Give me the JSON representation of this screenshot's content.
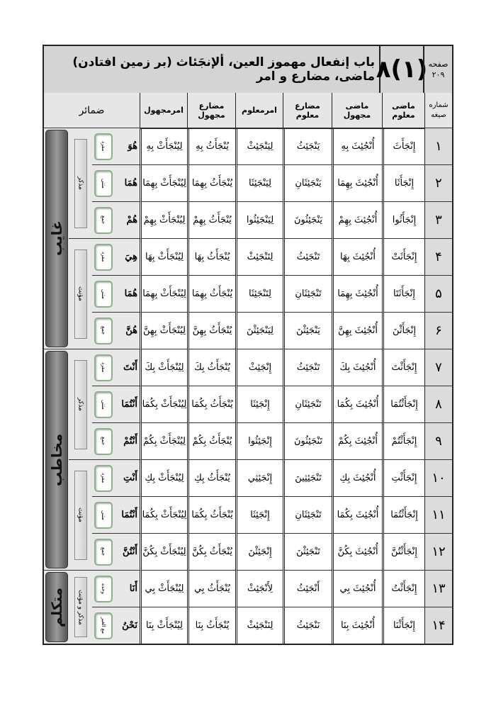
{
  "header": {
    "title": "باب إنفعال مهموز العين، ألإنجَئاث (بر زمين افتادن) ماضی، مضارع و امر",
    "lesson": "(۱)۸",
    "page_label": "صفحه",
    "page_number": "۲۰۹"
  },
  "columns": {
    "pronouns": "ضمائر",
    "amr_majhul": "امرمجهول",
    "mudari_majhul": "مضارع مجهول",
    "amr_maloom": "امرمعلوم",
    "mudari_maloom": "مضارع معلوم",
    "madi_majhul": "ماضی مجهول",
    "madi_maloom": "ماضی معلوم",
    "form_number": "شماره صيغه"
  },
  "persons": [
    "غایب",
    "مخاطب",
    "متکلم"
  ],
  "genders": [
    "مذکر",
    "مؤنث",
    "مذکر",
    "مؤنث",
    "مذکر و مؤنث"
  ],
  "rows": [
    {
      "n": "۱",
      "madi_maloom": "إِنْجَأَثَ",
      "madi_majhul": "أُنْجُئِثَ بِهِ",
      "mudari_maloom": "يَنْجَئِثُ",
      "amr_maloom": "لِيَنْجَئِثْ",
      "mudari_majhul": "يُنْجَأَثُ بِهِ",
      "amr_majhul": "لِيُنْجَأَثْ بِهِ",
      "pronoun": "هُوَ",
      "number": "مفرد"
    },
    {
      "n": "۲",
      "madi_maloom": "إِنْجَأَثَا",
      "madi_majhul": "أُنْجُئِثَ بِهِمَا",
      "mudari_maloom": "يَنْجَئِثَانِ",
      "amr_maloom": "لِيَنْجَئِثَا",
      "mudari_majhul": "يُنْجَأَثُ بِهِمَا",
      "amr_majhul": "لِيُنْجَأَثْ بِهِمَا",
      "pronoun": "هُمَا",
      "number": "مثنی"
    },
    {
      "n": "۳",
      "madi_maloom": "إِنْجَأَثُوا",
      "madi_majhul": "أُنْجُئِثَ بِهِمْ",
      "mudari_maloom": "يَنْجَئِثُونَ",
      "amr_maloom": "لِيَنْجَئِثُوا",
      "mudari_majhul": "يُنْجَأَثُ بِهِمْ",
      "amr_majhul": "لِيُنْجَأَثْ بِهِمْ",
      "pronoun": "هُمْ",
      "number": "جمع"
    },
    {
      "n": "۴",
      "madi_maloom": "إِنْجَأَثَتْ",
      "madi_majhul": "أُنْجُئِثَ بِهَا",
      "mudari_maloom": "تَنْجَئِثُ",
      "amr_maloom": "لِتَنْجَئِثْ",
      "mudari_majhul": "يُنْجَأَثُ بِهَا",
      "amr_majhul": "لِيُنْجَأَثْ بِهَا",
      "pronoun": "هِيَ",
      "number": "مفرد"
    },
    {
      "n": "۵",
      "madi_maloom": "إِنْجَأَثَتَا",
      "madi_majhul": "أُنْجُئِثَ بِهِمَا",
      "mudari_maloom": "تَنْجَئِثَانِ",
      "amr_maloom": "لِتَنْجَئِثَا",
      "mudari_majhul": "يُنْجَأَثُ بِهِمَا",
      "amr_majhul": "لِيُنْجَأَثْ بِهِمَا",
      "pronoun": "هُمَا",
      "number": "مثنی"
    },
    {
      "n": "۶",
      "madi_maloom": "إِنْجَأَثْنَ",
      "madi_majhul": "أُنْجُئِثَ بِهِنَّ",
      "mudari_maloom": "يَنْجَئِثْنَ",
      "amr_maloom": "لِيَنْجَئِثْنَ",
      "mudari_majhul": "يُنْجَأَثُ بِهِنَّ",
      "amr_majhul": "لِيُنْجَأَثْ بِهِنَّ",
      "pronoun": "هُنَّ",
      "number": "جمع"
    },
    {
      "n": "۷",
      "madi_maloom": "إِنْجَأَثْتَ",
      "madi_majhul": "أُنْجُئِثَ بِكَ",
      "mudari_maloom": "تَنْجَئِثُ",
      "amr_maloom": "إِنْجَئِثْ",
      "mudari_majhul": "يُنْجَأَثُ بِكَ",
      "amr_majhul": "لِيُنْجَأَثْ بِكَ",
      "pronoun": "أَنْتَ",
      "number": "مفرد"
    },
    {
      "n": "۸",
      "madi_maloom": "إِنْجَأَثْتُمَا",
      "madi_majhul": "أُنْجُئِثَ بِكُمَا",
      "mudari_maloom": "تَنْجَئِثَانِ",
      "amr_maloom": "إِنْجَئِثَا",
      "mudari_majhul": "يُنْجَأَثُ بِكُمَا",
      "amr_majhul": "لِيُنْجَأَثْ بِكُمَا",
      "pronoun": "أَنْتُمَا",
      "number": "مثنی"
    },
    {
      "n": "۹",
      "madi_maloom": "إِنْجَأَثْتُمْ",
      "madi_majhul": "أُنْجُئِثَ بِكُمْ",
      "mudari_maloom": "تَنْجَئِثُونَ",
      "amr_maloom": "إِنْجَئِثُوا",
      "mudari_majhul": "يُنْجَأَثُ بِكُمْ",
      "amr_majhul": "لِيُنْجَأَثْ بِكُمْ",
      "pronoun": "أَنْتُمْ",
      "number": "جمع"
    },
    {
      "n": "۱۰",
      "madi_maloom": "إِنْجَأَثْتِ",
      "madi_majhul": "أُنْجُئِثَ بِكِ",
      "mudari_maloom": "تَنْجَئِثِينَ",
      "amr_maloom": "إِنْجَئِثِي",
      "mudari_majhul": "يُنْجَأَثُ بِكِ",
      "amr_majhul": "لِيُنْجَأَثْ بِكِ",
      "pronoun": "أَنْتِ",
      "number": "مفرد"
    },
    {
      "n": "۱۱",
      "madi_maloom": "إِنْجَأَثْتُمَا",
      "madi_majhul": "أُنْجُئِثَ بِكُمَا",
      "mudari_maloom": "تَنْجَئِثَانِ",
      "amr_maloom": "إِنْجَئِثَا",
      "mudari_majhul": "يُنْجَأَثُ بِكُمَا",
      "amr_majhul": "لِيُنْجَأَثْ بِكُمَا",
      "pronoun": "أَنْتُمَا",
      "number": "مثنی"
    },
    {
      "n": "۱۲",
      "madi_maloom": "إِنْجَأَثْتُنَّ",
      "madi_majhul": "أُنْجُئِثَ بِكُنَّ",
      "mudari_maloom": "تَنْجَئِثْنَ",
      "amr_maloom": "إِنْجَئِثْنَ",
      "mudari_majhul": "يُنْجَأَثُ بِكُنَّ",
      "amr_majhul": "لِيُنْجَأَثْ بِكُنَّ",
      "pronoun": "أَنْتُنَّ",
      "number": "جمع"
    },
    {
      "n": "۱۳",
      "madi_maloom": "إِنْجَأَثْتُ",
      "madi_majhul": "أُنْجُئِثَ بِي",
      "mudari_maloom": "أَنْجَئِثُ",
      "amr_maloom": "لِأَنْجَئِثْ",
      "mudari_majhul": "يُنْجَأَثُ بِي",
      "amr_majhul": "لِيُنْجَأَثْ بِي",
      "pronoun": "أَنَا",
      "number": "وحده"
    },
    {
      "n": "۱۴",
      "madi_maloom": "إِنْجَأَثْنَا",
      "madi_majhul": "أُنْجُئِثَ بِنَا",
      "mudari_maloom": "نَنْجَئِثُ",
      "amr_maloom": "لِنَنْجَئِثْ",
      "mudari_majhul": "يُنْجَأَثُ بِنَا",
      "amr_majhul": "لِيُنْجَأَثْ بِنَا",
      "pronoun": "نَحْنُ",
      "number": "مع الغير"
    }
  ]
}
